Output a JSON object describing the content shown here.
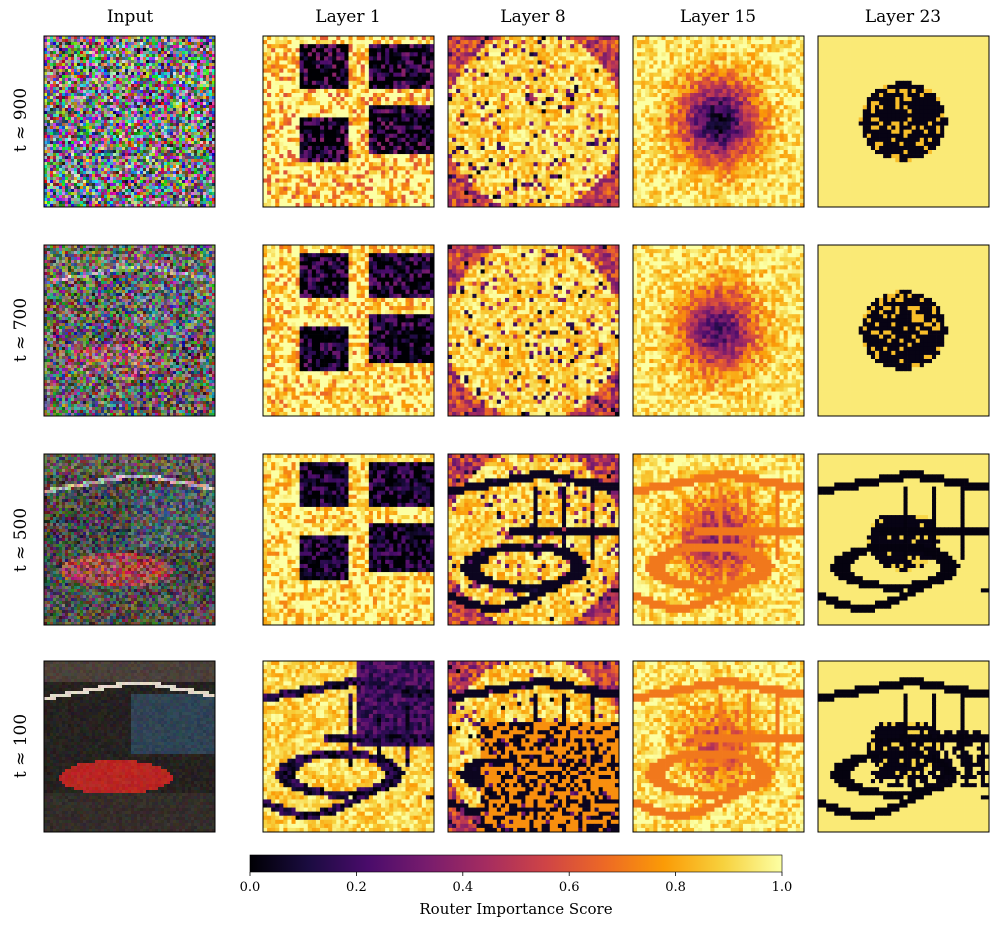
{
  "chart_data": {
    "type": "heatmap",
    "columns": [
      "Input",
      "Layer 1",
      "Layer 8",
      "Layer 15",
      "Layer 23"
    ],
    "rows": [
      "t ≈ 900",
      "t ≈ 700",
      "t ≈ 500",
      "t ≈ 100"
    ],
    "grid_resolution": 42,
    "colormap": "inferno",
    "colorbar": {
      "label": "Router Importance Score",
      "range": [
        0.0,
        1.0
      ],
      "ticks": [
        "0.0",
        "0.2",
        "0.4",
        "0.6",
        "0.8",
        "1.0"
      ]
    },
    "noise_level": [
      0.95,
      0.7,
      0.45,
      0.08
    ],
    "layer_pattern": {
      "Layer 1": "low scores in dark vertical band through centre-right; high elsewhere",
      "Layer 8": "mostly high; low near corners; structure emerges at low t",
      "Layer 15": "mid scores in central blob; becomes scene edges at low t",
      "Layer 23": "very low scores in central region; edges/structure at low t"
    }
  },
  "colors": {
    "inferno_stops": [
      "#000004",
      "#1b0c41",
      "#4a0c6b",
      "#781c6d",
      "#a52c60",
      "#cf4446",
      "#ed6925",
      "#fb9b06",
      "#f7d13d",
      "#fcffa4"
    ],
    "frame": "#000000",
    "photo_car": "#c8201a",
    "photo_room": "#2a2320"
  }
}
